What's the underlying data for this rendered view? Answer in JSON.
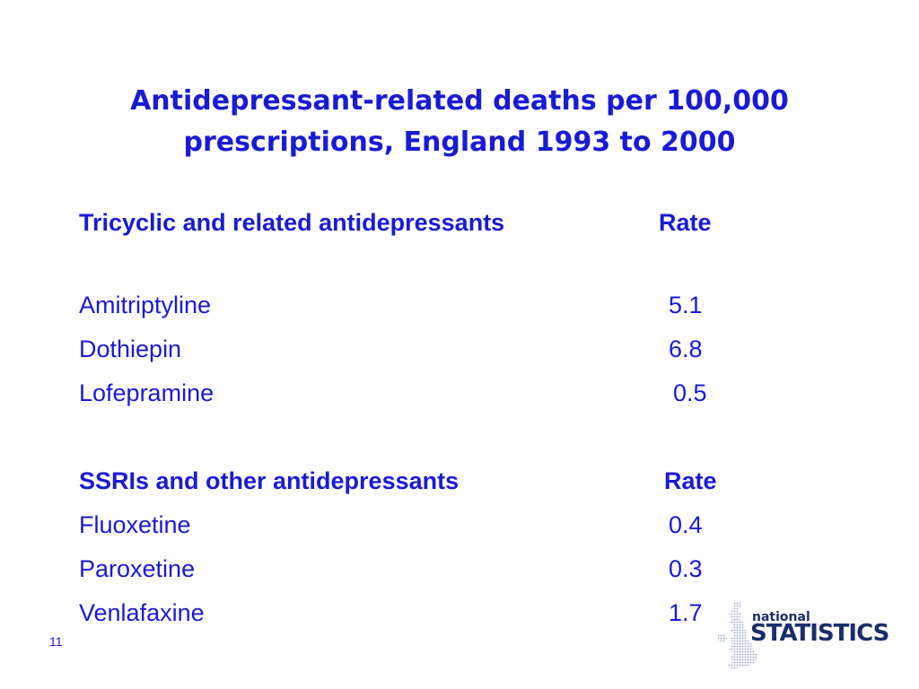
{
  "title": {
    "line1": "Antidepressant-related deaths per 100,000",
    "line2": "prescriptions, England 1993 to 2000"
  },
  "tricyclic": {
    "header": "Tricyclic and related antidepressants",
    "rate_label": "Rate",
    "rows": [
      {
        "name": "Amitriptyline",
        "rate": "5.1"
      },
      {
        "name": "Dothiepin",
        "rate": "6.8"
      },
      {
        "name": "Lofepramine",
        "rate": "0.5"
      }
    ]
  },
  "ssri": {
    "header": "SSRIs and other antidepressants",
    "rate_label": "Rate",
    "rows": [
      {
        "name": "Fluoxetine",
        "rate": "0.4"
      },
      {
        "name": "Paroxetine",
        "rate": "0.3"
      },
      {
        "name": "Venlafaxine",
        "rate": "1.7"
      }
    ]
  },
  "slide_number": "11",
  "logo": {
    "top_text": "national",
    "bottom_text": "STATISTICS"
  },
  "colors": {
    "text": "#1a1ad6",
    "logo": "#1c2d6b"
  }
}
